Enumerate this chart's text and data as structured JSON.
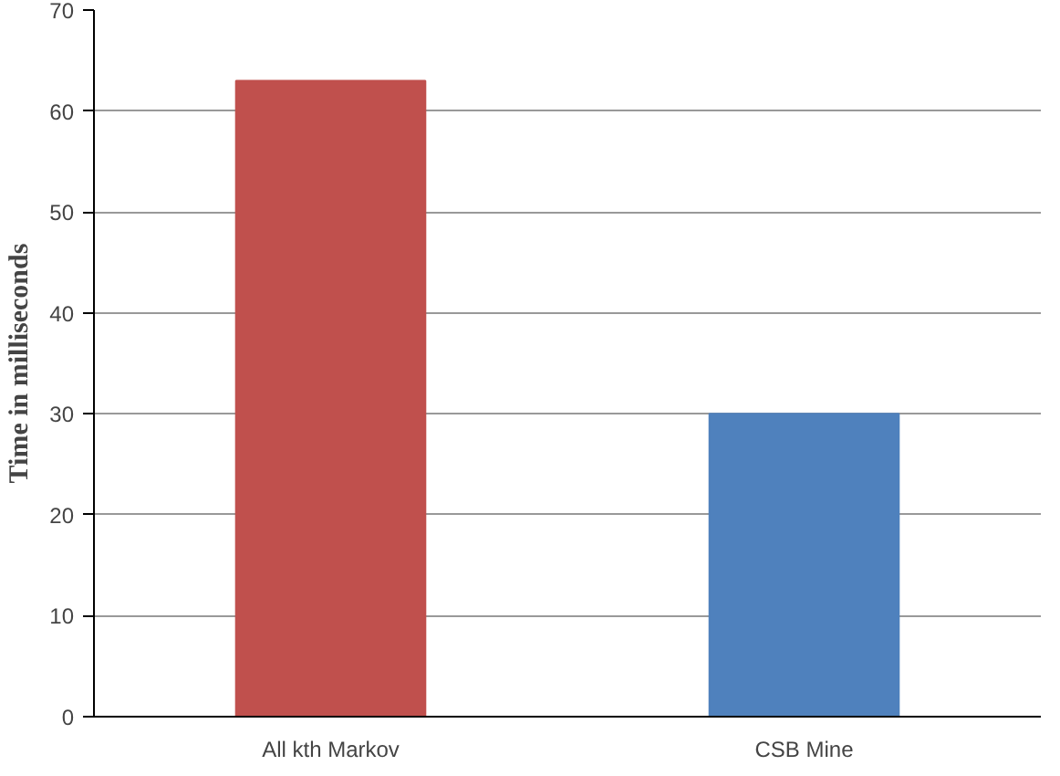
{
  "chart_data": {
    "type": "bar",
    "ylabel": "Time in milliseconds",
    "categories": [
      "All kth Markov",
      "CSB Mine"
    ],
    "values": [
      63,
      30
    ],
    "colors": [
      "#c0504d",
      "#4f81bd"
    ],
    "ylim": [
      0,
      70
    ],
    "yticks": [
      0,
      10,
      20,
      30,
      40,
      50,
      60,
      70
    ],
    "grid": "y"
  }
}
